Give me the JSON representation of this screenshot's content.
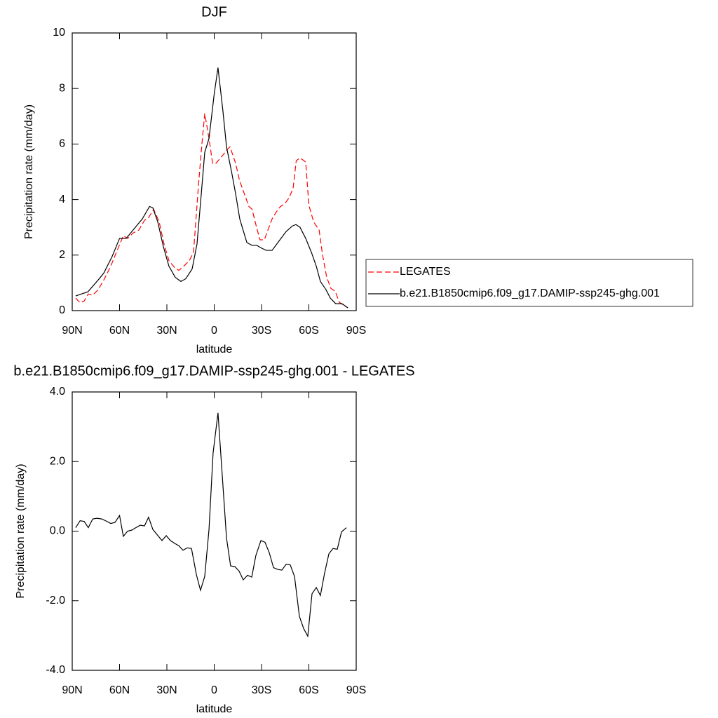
{
  "chart_data": [
    {
      "type": "line",
      "title": "DJF",
      "xlabel": "latitude",
      "ylabel": "Precipitation rate (mm/day)",
      "xlim": [
        90,
        -90
      ],
      "ylim": [
        0,
        10
      ],
      "xticks": [
        {
          "value": 90,
          "label": "90N"
        },
        {
          "value": 60,
          "label": "60N"
        },
        {
          "value": 30,
          "label": "30N"
        },
        0,
        {
          "value": -30,
          "label": "30S"
        },
        {
          "value": -60,
          "label": "60S"
        },
        {
          "value": -90,
          "label": "90S"
        }
      ],
      "yticks": [
        0,
        2,
        4,
        6,
        8,
        10
      ],
      "legend": "right",
      "series": [
        {
          "name": "LEGATES",
          "color": "#ff0000",
          "dashed": true,
          "x": [
            87.8,
            85,
            82.4,
            79.8,
            77.1,
            73.6,
            70,
            65.6,
            62,
            57.6,
            54.9,
            51.3,
            47.8,
            44.2,
            41.6,
            38.4,
            34.9,
            31.8,
            28.7,
            25.1,
            22.4,
            19.3,
            15.8,
            13.1,
            10,
            7.8,
            6,
            3.3,
            1,
            -1,
            -5.5,
            -8.2,
            -10,
            -13.6,
            -16,
            -18.5,
            -22,
            -24,
            -26.4,
            -29,
            -31.8,
            -34,
            -36.7,
            -39.3,
            -42,
            -44.7,
            -47.3,
            -50,
            -52,
            -54.5,
            -58,
            -60,
            -63,
            -66.5,
            -68.7,
            -71.3,
            -74,
            -76.7,
            -79.3,
            -84.7
          ],
          "values": [
            0.45,
            0.28,
            0.35,
            0.6,
            0.55,
            0.75,
            1.1,
            1.6,
            2.1,
            2.7,
            2.6,
            2.8,
            2.9,
            3.25,
            3.35,
            3.65,
            3.2,
            2.4,
            1.8,
            1.55,
            1.45,
            1.6,
            1.8,
            2.1,
            4.5,
            6.0,
            7.1,
            6.2,
            5.3,
            5.3,
            5.6,
            5.8,
            5.9,
            5.3,
            4.7,
            4.3,
            3.75,
            3.65,
            3.1,
            2.55,
            2.55,
            2.9,
            3.3,
            3.55,
            3.75,
            3.85,
            4.05,
            4.4,
            5.4,
            5.5,
            5.35,
            3.8,
            3.2,
            2.9,
            2.0,
            1.2,
            0.8,
            0.7,
            0.3,
            0.1
          ]
        },
        {
          "name": "b.e21.B1850cmip6.f09_g17.DAMIP-ssp245-ghg.001",
          "color": "#000000",
          "dashed": false,
          "x": [
            87.8,
            80,
            73.6,
            70,
            64.7,
            60,
            55.8,
            50,
            45.6,
            41,
            38.9,
            35.8,
            32.2,
            28.7,
            24.7,
            21.1,
            18,
            14,
            10.9,
            8.2,
            6,
            3.3,
            0,
            -2.4,
            -5.5,
            -7.8,
            -11,
            -13.6,
            -16.2,
            -20.7,
            -24,
            -27,
            -30,
            -33,
            -36.7,
            -41,
            -45.6,
            -49.6,
            -51.8,
            -54.4,
            -58,
            -61.6,
            -64.7,
            -67.3,
            -70.9,
            -73.6,
            -77,
            -81,
            -84.7
          ],
          "values": [
            0.53,
            0.68,
            1.1,
            1.35,
            1.95,
            2.6,
            2.6,
            3.0,
            3.3,
            3.75,
            3.7,
            3.2,
            2.3,
            1.6,
            1.2,
            1.05,
            1.15,
            1.5,
            2.4,
            4.2,
            5.7,
            6.2,
            7.8,
            8.75,
            7.2,
            5.9,
            5.0,
            4.2,
            3.3,
            2.45,
            2.35,
            2.35,
            2.25,
            2.17,
            2.17,
            2.5,
            2.85,
            3.05,
            3.1,
            3.0,
            2.6,
            2.1,
            1.6,
            1.05,
            0.75,
            0.45,
            0.25,
            0.25,
            0.1
          ]
        }
      ]
    },
    {
      "type": "line",
      "title": "b.e21.B1850cmip6.f09_g17.DAMIP-ssp245-ghg.001 - LEGATES",
      "xlabel": "latitude",
      "ylabel": "Precipitation rate (mm/day)",
      "xlim": [
        90,
        -90
      ],
      "ylim": [
        -4,
        4
      ],
      "xticks": [
        {
          "value": 90,
          "label": "90N"
        },
        {
          "value": 60,
          "label": "60N"
        },
        {
          "value": 30,
          "label": "30N"
        },
        0,
        {
          "value": -30,
          "label": "30S"
        },
        {
          "value": -60,
          "label": "60S"
        },
        {
          "value": -90,
          "label": "90S"
        }
      ],
      "yticks": [
        {
          "value": -4,
          "label": "-4.0"
        },
        {
          "value": -2,
          "label": "-2.0"
        },
        {
          "value": 0,
          "label": "0.0"
        },
        {
          "value": 2,
          "label": "2.0"
        },
        {
          "value": 4,
          "label": "4.0"
        }
      ],
      "series": [
        {
          "color": "#000000",
          "dashed": false,
          "x": [
            87.8,
            85,
            82.4,
            79.8,
            77,
            74.4,
            71.3,
            68,
            65.6,
            62.9,
            60,
            57.6,
            54.9,
            52.2,
            49.6,
            46.9,
            44.2,
            41.6,
            38.9,
            36.2,
            33.1,
            30.4,
            27.8,
            25.1,
            22.4,
            19.8,
            17.1,
            14.4,
            11.3,
            8.7,
            6,
            3.3,
            0.7,
            -2.4,
            -5.1,
            -7.8,
            -10.4,
            -13.1,
            -15.8,
            -18.4,
            -21.1,
            -23.8,
            -26.4,
            -29.6,
            -32.2,
            -34.9,
            -37.6,
            -40.2,
            -42.9,
            -45.6,
            -48.2,
            -50.9,
            -54,
            -56.7,
            -59.3,
            -62,
            -64.7,
            -67.3,
            -70,
            -72.7,
            -75.3,
            -78,
            -80.7,
            -83.8
          ],
          "values": [
            0.1,
            0.3,
            0.28,
            0.1,
            0.35,
            0.37,
            0.35,
            0.28,
            0.22,
            0.25,
            0.45,
            -0.15,
            0.0,
            0.03,
            0.1,
            0.17,
            0.15,
            0.4,
            0.05,
            -0.1,
            -0.27,
            -0.13,
            -0.27,
            -0.35,
            -0.42,
            -0.55,
            -0.48,
            -0.5,
            -1.25,
            -1.7,
            -1.3,
            0.05,
            2.25,
            3.4,
            1.6,
            -0.2,
            -1.0,
            -1.02,
            -1.15,
            -1.4,
            -1.27,
            -1.32,
            -0.7,
            -0.27,
            -0.32,
            -0.62,
            -1.05,
            -1.1,
            -1.12,
            -0.95,
            -0.97,
            -1.3,
            -2.45,
            -2.8,
            -3.02,
            -1.8,
            -1.62,
            -1.85,
            -1.2,
            -0.65,
            -0.5,
            -0.52,
            -0.02,
            0.1
          ]
        }
      ]
    }
  ]
}
